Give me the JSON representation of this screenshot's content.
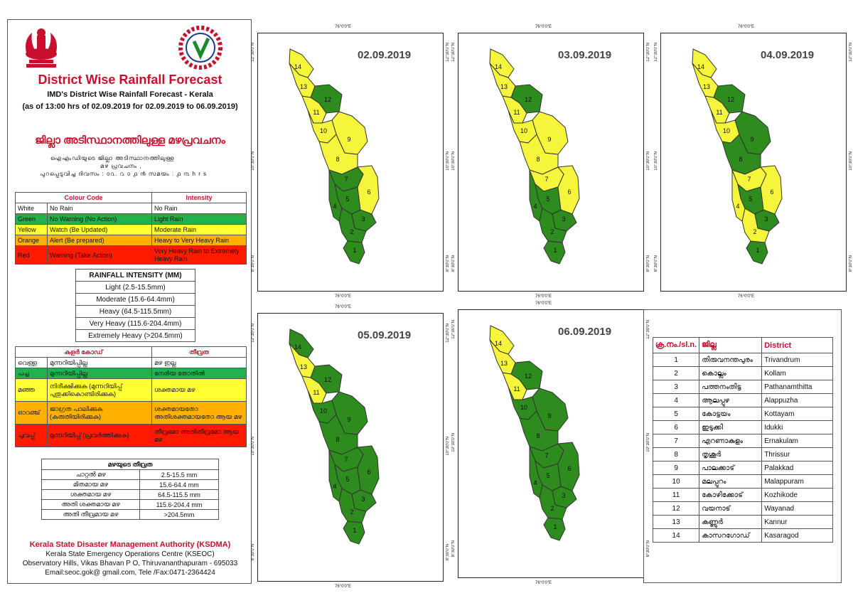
{
  "header": {
    "title": "District Wise Rainfall Forecast",
    "subtitle": "IMD's District Wise Rainfall Forecast - Kerala",
    "subtitle2": "(as of 13:00 hrs of 02.09.2019  for 02.09.2019 to 06.09.2019)",
    "ml_title": "ജില്ലാ അടിസ്ഥാനത്തിലുള്ള മഴപ്രവചനം",
    "ml_line1": "ഐഎംഡിയുടെ      ജില്ലാ      അടിസ്ഥാനത്തിലുള്ള",
    "ml_line2": "മഴ പ്രവചനം      ,",
    "ml_line3": "പുറപ്പെടുവിച്ച      ദിവസം : ൦൨.  ൨ ൦ ൧ ൯  സമയം : ൧ ൩  h r s"
  },
  "colour_code_table": {
    "headers": [
      "Colour Code",
      "Intensity"
    ],
    "rows": [
      {
        "colour": "White",
        "meaning": "No Rain",
        "intensity": "No Rain",
        "hex": "#ffffff"
      },
      {
        "colour": "Green",
        "meaning": "No Warning (No Action)",
        "intensity": "Light Rain",
        "hex": "#22b14c"
      },
      {
        "colour": "Yellow",
        "meaning": "Watch (Be Updated)",
        "intensity": "Moderate Rain",
        "hex": "#ffff33"
      },
      {
        "colour": "Orange",
        "meaning": "Alert (Be prepared)",
        "intensity": "Heavy to Very Heavy Rain",
        "hex": "#ffb000"
      },
      {
        "colour": "Red",
        "meaning": "Warning (Take Action)",
        "intensity": "Very Heavy Rain to Extremely Heavy Rain",
        "hex": "#ff1a00"
      }
    ]
  },
  "intensity_table": {
    "header": "RAINFALL INTENSITY (MM)",
    "rows": [
      "Light (2.5-15.5mm)",
      "Moderate (15.6-64.4mm)",
      "Heavy (64.5-115.5mm)",
      "Very Heavy (115.6-204.4mm)",
      "Extremely Heavy (>204.5mm)"
    ]
  },
  "ml_colour_code_table": {
    "headers": [
      "കളർ കോഡ്",
      "തീവ്രത"
    ],
    "rows": [
      {
        "colour": "വെള്ള",
        "meaning": "മുന്നറിയിപ്പില്ല",
        "intensity": "മഴ ഇല്ല"
      },
      {
        "colour": "പച്ച",
        "meaning": "മുന്നറിയിപ്പില്ല",
        "intensity": "നേരിയ തോതിൽ"
      },
      {
        "colour": "മഞ്ഞ",
        "meaning": "നിരീക്ഷിക്കുക (മുന്നറിയിപ്പ് പുതുക്കികൊണ്ടിരിക്കുക)",
        "intensity": "ശക്തമായ മഴ"
      },
      {
        "colour": "ഓറഞ്ച്",
        "meaning": "ജാഗ്രത പാലിക്കുക (കരുതിയിരിക്കുക)",
        "intensity": "ശക്തമായതോ അതിശക്തമായതോ ആയ മഴ"
      },
      {
        "colour": "ചുവപ്പ്",
        "meaning": "മുന്നറിയിപ്പ് (പ്രവർത്തിക്കുക)",
        "intensity": "തീവ്രമോ അതിതീവ്രമോ ആയ മഴ"
      }
    ]
  },
  "ml_intensity_table": {
    "header": "മഴയുടെ തീവ്രത",
    "rows": [
      {
        "label": "ചാറ്റൽ മഴ",
        "range": "2.5-15.5 mm"
      },
      {
        "label": "മിതമായ മഴ",
        "range": "15.6-64.4 mm"
      },
      {
        "label": "ശക്തമായ മഴ",
        "range": "64.5-115.5 mm"
      },
      {
        "label": "അതി ശക്തമായ മഴ",
        "range": "115.6-204.4 mm"
      },
      {
        "label": "അതി തീവ്രമായ മഴ",
        "range": ">204.5mm"
      }
    ]
  },
  "footer": {
    "org": "Kerala State Disaster Management Authority (KSDMA)",
    "line1": "Kerala State Emergency Operations Centre (KSEOC)",
    "line2": "Observatory Hills, Vikas Bhavan P O, Thiruvananthapuram - 695033",
    "line3": "Email:seoc.gok@ gmail.com, Tele /Fax:0471-2364424"
  },
  "map_axes": {
    "lon_label": "76°0'0\"E",
    "lat_top": "12°30'0\"N",
    "lat_mid": "10°30'0\"N",
    "lat_bottom": "8°30'0\"N"
  },
  "colors": {
    "green": "#2e8b1e",
    "yellow": "#f5f53c",
    "outline": "#333333"
  },
  "maps": [
    {
      "date": "02.09.2019",
      "yellow": [
        14,
        13,
        11,
        10,
        9,
        8,
        6
      ],
      "green": [
        12,
        7,
        5,
        4,
        3,
        2,
        1
      ]
    },
    {
      "date": "03.09.2019",
      "yellow": [
        14,
        13,
        11,
        10,
        9,
        8,
        7,
        6
      ],
      "green": [
        12,
        5,
        4,
        3,
        2,
        1
      ]
    },
    {
      "date": "04.09.2019",
      "yellow": [
        14,
        13,
        11,
        10,
        7,
        6,
        4,
        2
      ],
      "green": [
        12,
        9,
        8,
        5,
        3,
        1
      ]
    },
    {
      "date": "05.09.2019",
      "yellow": [
        13,
        11
      ],
      "green": [
        14,
        12,
        10,
        9,
        8,
        7,
        6,
        5,
        4,
        3,
        2,
        1
      ]
    },
    {
      "date": "06.09.2019",
      "yellow": [
        14,
        13,
        11
      ],
      "green": [
        12,
        10,
        9,
        8,
        7,
        6,
        5,
        4,
        3,
        2,
        1
      ]
    }
  ],
  "district_table": {
    "headers": [
      "ക്ര.നം./sl.n.",
      "ജില്ല",
      "District"
    ],
    "rows": [
      {
        "sl": "1",
        "ml": "തിരുവനന്തപുരം",
        "en": "Trivandrum"
      },
      {
        "sl": "2",
        "ml": "കൊല്ലം",
        "en": "Kollam"
      },
      {
        "sl": "3",
        "ml": "പത്തനംതിട്ട",
        "en": "Pathanamthitta"
      },
      {
        "sl": "4",
        "ml": "ആലപ്പുഴ",
        "en": "Alappuzha"
      },
      {
        "sl": "5",
        "ml": "കോട്ടയം",
        "en": "Kottayam"
      },
      {
        "sl": "6",
        "ml": "ഇടുക്കി",
        "en": "Idukki"
      },
      {
        "sl": "7",
        "ml": "എറണാകുളം",
        "en": "Ernakulam"
      },
      {
        "sl": "8",
        "ml": "തൃശൂർ",
        "en": "Thrissur"
      },
      {
        "sl": "9",
        "ml": "പാലക്കാട്",
        "en": "Palakkad"
      },
      {
        "sl": "10",
        "ml": "മലപ്പുറം",
        "en": "Malappuram"
      },
      {
        "sl": "11",
        "ml": "കോഴിക്കോട്",
        "en": "Kozhikode"
      },
      {
        "sl": "12",
        "ml": "വയനാട്",
        "en": "Wayanad"
      },
      {
        "sl": "13",
        "ml": "കണ്ണൂർ",
        "en": "Kannur"
      },
      {
        "sl": "14",
        "ml": "കാസറഗോഡ്",
        "en": "Kasaragod"
      }
    ]
  }
}
